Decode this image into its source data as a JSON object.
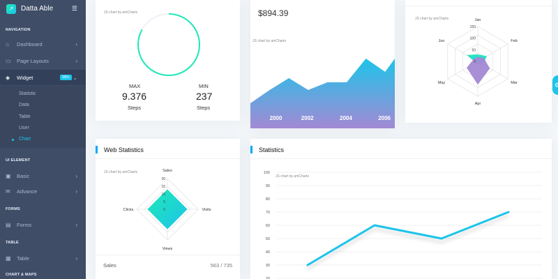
{
  "app": {
    "name": "Datta Able"
  },
  "sidebar": {
    "captions": {
      "navigation": "NAVIGATION",
      "ui_element": "UI ELEMENT",
      "forms": "FORMS",
      "table": "TABLE",
      "chart_maps": "CHART & MAPS"
    },
    "items": {
      "dashboard": "Dashboard",
      "page_layouts": "Page Layouts",
      "widget": "Widget",
      "widget_badge": "100+",
      "basic": "Basic",
      "advance": "Advance",
      "forms": "Forms",
      "table": "Table"
    },
    "widget_sub": [
      "Statistic",
      "Data",
      "Table",
      "User",
      "Chart"
    ]
  },
  "steps_card": {
    "watermark": "JS chart by amCharts",
    "max_label": "MAX",
    "max_value": "9.376",
    "max_unit": "Steps",
    "min_label": "MIN",
    "min_value": "237",
    "min_unit": "Steps",
    "progress": 0.83
  },
  "area_card": {
    "amount": "$894.39",
    "watermark": "JS chart by amCharts"
  },
  "radar_card": {
    "watermark": "JS chart by amCharts"
  },
  "web_stats": {
    "title": "Web Statistics",
    "watermark": "JS chart by amCharts",
    "row_label": "Sales",
    "row_value": "563 / 735"
  },
  "statistics": {
    "title": "Statistics",
    "watermark": "JS chart by amCharts"
  },
  "colors": {
    "accent": "#1dc4e9",
    "accent2": "#1de9b6",
    "purple": "#a389d4",
    "sidebar": "#3f4d67"
  },
  "chart_data": [
    {
      "type": "area",
      "x": [
        1999,
        2000,
        2001,
        2002,
        2003,
        2004,
        2005,
        2006,
        2006.5
      ],
      "values": [
        0.36,
        0.55,
        0.72,
        0.55,
        0.66,
        0.66,
        1.0,
        0.81,
        1.0
      ],
      "tick_labels": [
        "2000",
        "2002",
        "2004",
        "2006"
      ],
      "ylim": [
        0,
        1
      ]
    },
    {
      "type": "radar",
      "categories": [
        "Jan",
        "Feb",
        "Mar",
        "Apr",
        "May",
        "Jun"
      ],
      "radial_ticks": [
        "0",
        "50",
        "100",
        "150"
      ],
      "ylim": [
        0,
        150
      ],
      "series": [
        {
          "color": "#1dc4e9",
          "values": [
            30,
            45,
            25,
            10,
            10,
            55
          ]
        },
        {
          "color": "#a389d4",
          "values": [
            20,
            30,
            60,
            100,
            55,
            20
          ]
        }
      ]
    },
    {
      "type": "radar",
      "categories": [
        "Sales",
        "Visits",
        "Views",
        "Clicks"
      ],
      "radial_ticks": [
        "0",
        "5",
        "10",
        "15",
        "20"
      ],
      "ylim": [
        0,
        20
      ],
      "series": [
        {
          "values": [
            13,
            13,
            13,
            13
          ]
        }
      ]
    },
    {
      "type": "line",
      "x": [
        1,
        2,
        3,
        4
      ],
      "values": [
        30,
        60,
        50,
        70
      ],
      "y_ticks": [
        "100",
        "90",
        "80",
        "70",
        "60",
        "50",
        "40",
        "30",
        "20"
      ],
      "ylim": [
        20,
        100
      ]
    }
  ]
}
